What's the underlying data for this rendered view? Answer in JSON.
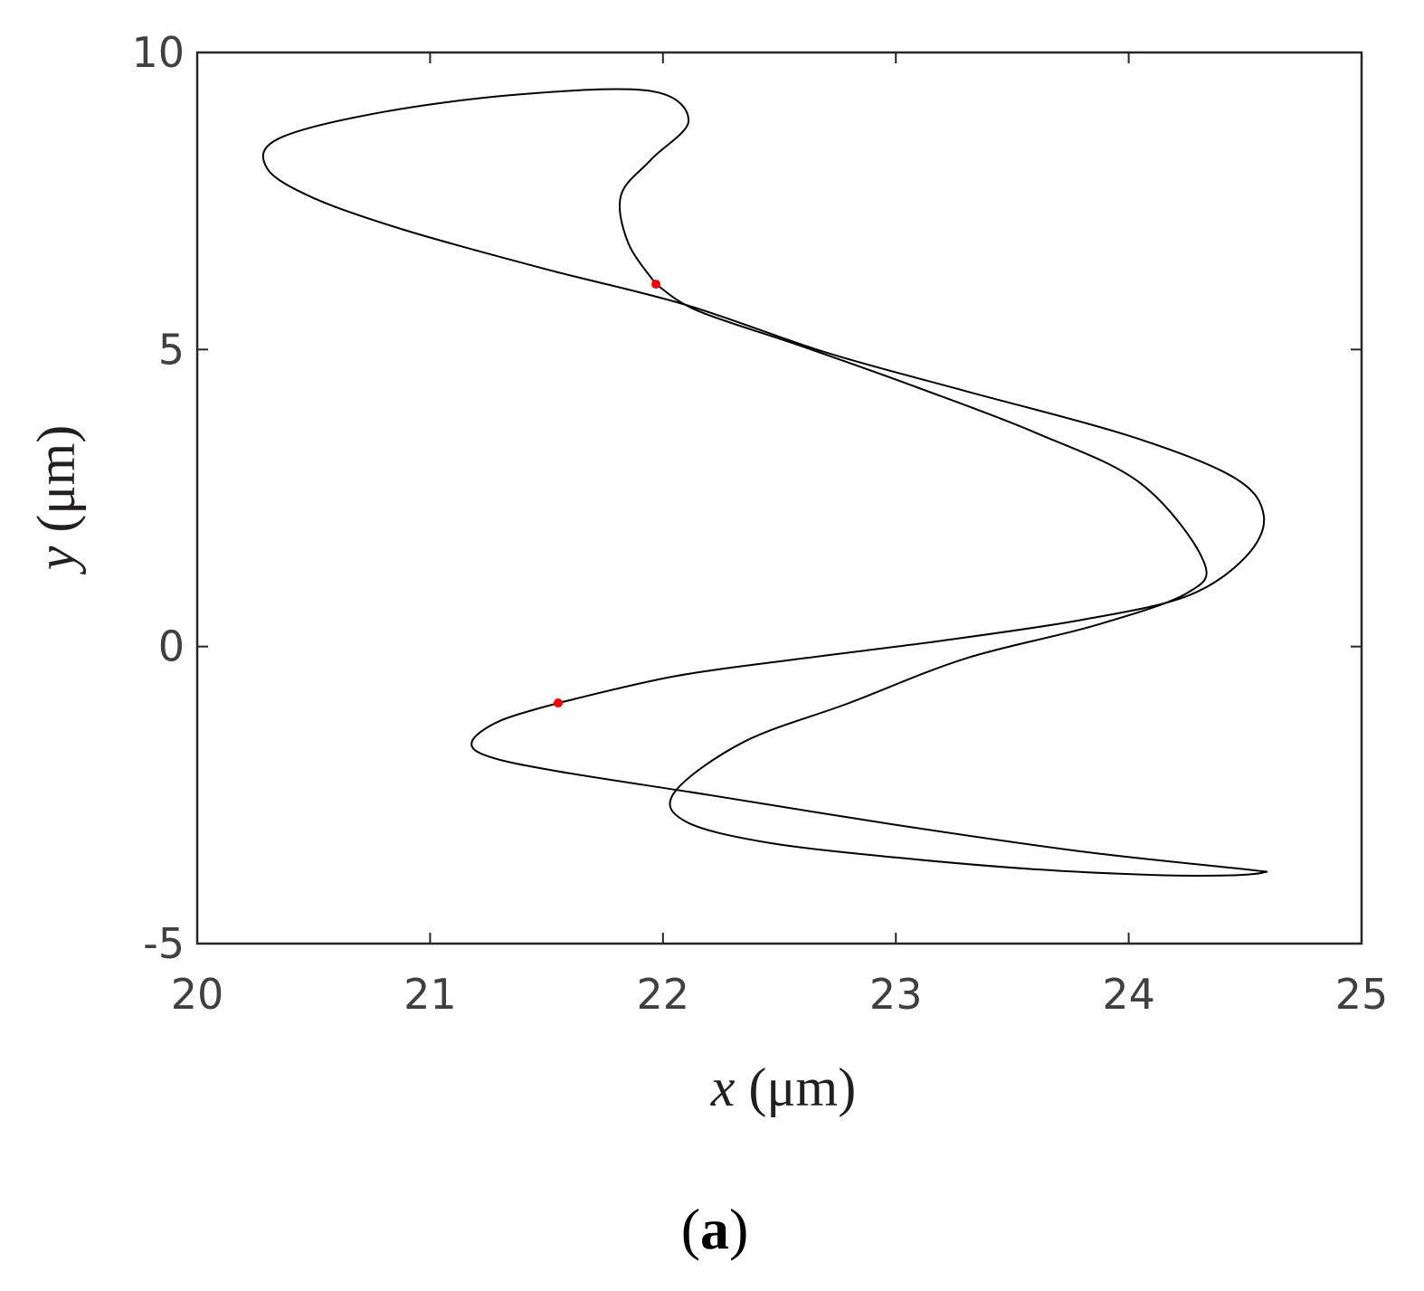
{
  "chart_data": {
    "type": "line",
    "xlabel_var": "x",
    "xlabel_unit": " (μm)",
    "ylabel_var": "y",
    "ylabel_unit": " (μm)",
    "xlim": [
      20,
      25
    ],
    "ylim": [
      -5,
      10
    ],
    "xticks": [
      20,
      21,
      22,
      23,
      24,
      25
    ],
    "yticks": [
      -5,
      0,
      5,
      10
    ],
    "xtick_labels": [
      "20",
      "21",
      "22",
      "23",
      "24",
      "25"
    ],
    "ytick_labels": [
      "-5",
      "0",
      "5",
      "10"
    ],
    "grid": false,
    "line_color": "#000000",
    "marker_color": "#ff0000",
    "series": [
      {
        "x": [
          21.97,
          22.15,
          22.6,
          23.1,
          23.6,
          24.05,
          24.32,
          24.25,
          23.85,
          23.3,
          22.8,
          22.35,
          22.05,
          22.1,
          22.45,
          23.0,
          23.6,
          24.15,
          24.45,
          24.58,
          24.5,
          23.8,
          23.0,
          22.2,
          21.55
        ],
        "y": [
          6.1,
          5.65,
          5.05,
          4.35,
          3.6,
          2.75,
          1.45,
          0.9,
          0.35,
          -0.2,
          -0.95,
          -1.6,
          -2.45,
          -2.95,
          -3.3,
          -3.55,
          -3.75,
          -3.85,
          -3.85,
          -3.8,
          -3.75,
          -3.45,
          -3.0,
          -2.45,
          -0.95
        ]
      },
      {
        "x": [
          21.55,
          21.3,
          21.18,
          21.55,
          22.05,
          22.6,
          23.2,
          23.8,
          24.25,
          24.55,
          24.58,
          24.45,
          24.0,
          23.3,
          22.7,
          22.1,
          21.5,
          20.9,
          20.5,
          20.3,
          20.35,
          20.8,
          21.4,
          21.95,
          22.11,
          21.95,
          21.82,
          21.85,
          21.97
        ],
        "y": [
          -0.95,
          -1.25,
          -1.6,
          -2.1,
          -2.45,
          -2.8,
          -3.1,
          -3.4,
          -3.65,
          -3.75,
          -3.85,
          1.45,
          0.9,
          0.35,
          0.05,
          -0.3,
          -0.55,
          7.1,
          7.65,
          8.1,
          8.55,
          9.05,
          9.35,
          9.35,
          8.85,
          8.2,
          7.6,
          6.8,
          6.1
        ]
      }
    ],
    "markers": [
      {
        "x": 21.97,
        "y": 6.1
      },
      {
        "x": 21.55,
        "y": -0.95
      }
    ]
  },
  "caption": {
    "open": "(",
    "letter": "a",
    "close": ")"
  }
}
